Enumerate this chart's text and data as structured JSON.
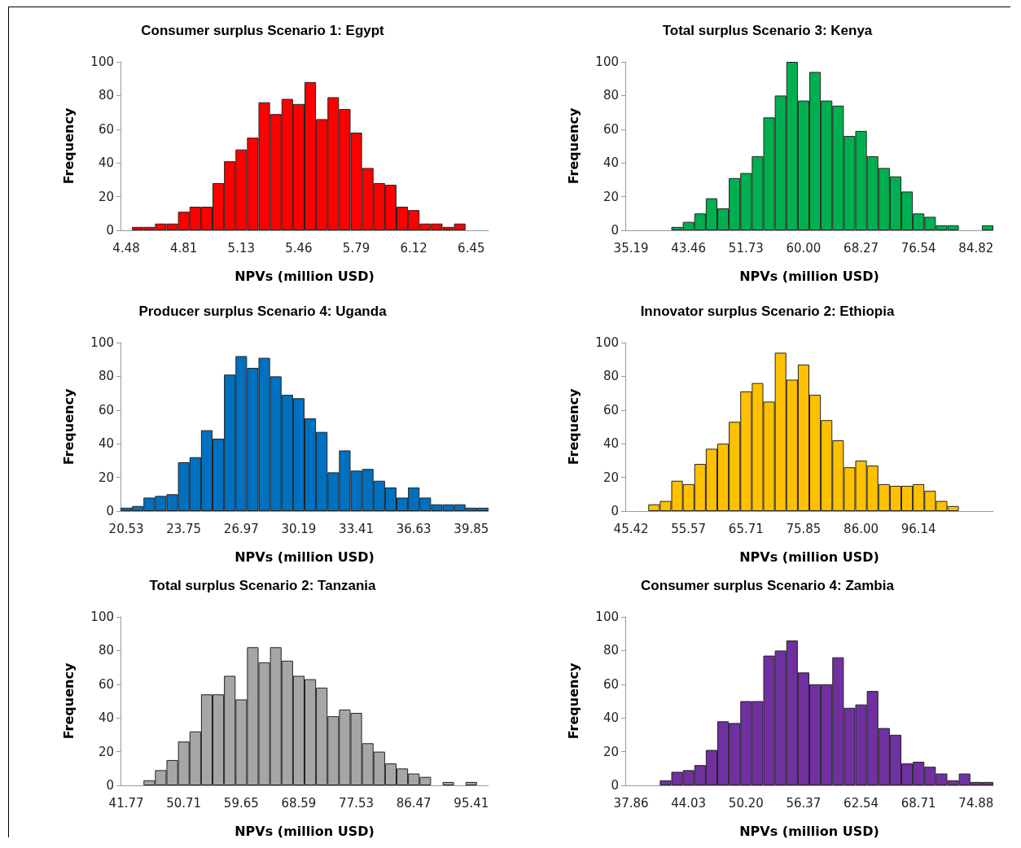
{
  "chart_data": [
    {
      "type": "bar",
      "title": "Consumer surplus Scenario 1: Egypt",
      "xlabel": "NPVs (million USD)",
      "ylabel": "Frequency",
      "color": "#ff0000",
      "ylim": [
        0,
        100
      ],
      "yticks": [
        0,
        20,
        40,
        60,
        80,
        100
      ],
      "categories": [
        "4.48",
        null,
        null,
        null,
        null,
        "4.81",
        null,
        null,
        null,
        null,
        "5.13",
        null,
        null,
        null,
        null,
        "5.46",
        null,
        null,
        null,
        null,
        "5.79",
        null,
        null,
        null,
        null,
        "6.12",
        null,
        null,
        null,
        null,
        "6.45",
        null
      ],
      "values": [
        0,
        2,
        2,
        4,
        4,
        11,
        14,
        14,
        28,
        41,
        48,
        55,
        76,
        69,
        78,
        75,
        88,
        66,
        79,
        72,
        58,
        37,
        28,
        27,
        14,
        12,
        4,
        4,
        2,
        4,
        0,
        0
      ]
    },
    {
      "type": "bar",
      "title": "Total surplus Scenario 3: Kenya",
      "xlabel": "NPVs (million USD)",
      "ylabel": "Frequency",
      "color": "#00b050",
      "ylim": [
        0,
        100
      ],
      "yticks": [
        0,
        20,
        40,
        60,
        80,
        100
      ],
      "categories": [
        "35.19",
        null,
        null,
        null,
        null,
        "43.46",
        null,
        null,
        null,
        null,
        "51.73",
        null,
        null,
        null,
        null,
        "60.00",
        null,
        null,
        null,
        null,
        "68.27",
        null,
        null,
        null,
        null,
        "76.54",
        null,
        null,
        null,
        null,
        "84.82",
        null
      ],
      "values": [
        0,
        0,
        0,
        0,
        2,
        5,
        10,
        19,
        13,
        31,
        34,
        44,
        67,
        80,
        100,
        77,
        94,
        77,
        74,
        56,
        59,
        44,
        37,
        32,
        23,
        10,
        8,
        3,
        3,
        0,
        0,
        3
      ]
    },
    {
      "type": "bar",
      "title": "Producer surplus Scenario 4: Uganda",
      "xlabel": "NPVs (million USD)",
      "ylabel": "Frequency",
      "color": "#0070c0",
      "ylim": [
        0,
        100
      ],
      "yticks": [
        0,
        20,
        40,
        60,
        80,
        100
      ],
      "categories": [
        "20.53",
        null,
        null,
        null,
        null,
        "23.75",
        null,
        null,
        null,
        null,
        "26.97",
        null,
        null,
        null,
        null,
        "30.19",
        null,
        null,
        null,
        null,
        "33.41",
        null,
        null,
        null,
        null,
        "36.63",
        null,
        null,
        null,
        null,
        "39.85",
        null
      ],
      "values": [
        2,
        3,
        8,
        9,
        10,
        29,
        32,
        48,
        43,
        81,
        92,
        85,
        91,
        80,
        69,
        67,
        55,
        47,
        23,
        36,
        24,
        25,
        18,
        14,
        8,
        14,
        8,
        4,
        4,
        4,
        2,
        2
      ]
    },
    {
      "type": "bar",
      "title": "Innovator surplus Scenario 2: Ethiopia",
      "xlabel": "NPVs (million USD)",
      "ylabel": "Frequency",
      "color": "#ffc000",
      "ylim": [
        0,
        100
      ],
      "yticks": [
        0,
        20,
        40,
        60,
        80,
        100
      ],
      "categories": [
        "45.42",
        null,
        null,
        null,
        null,
        "55.57",
        null,
        null,
        null,
        null,
        "65.71",
        null,
        null,
        null,
        null,
        "75.85",
        null,
        null,
        null,
        null,
        "86.00",
        null,
        null,
        null,
        null,
        "96.14",
        null,
        null,
        null,
        null,
        null,
        null
      ],
      "values": [
        0,
        0,
        4,
        6,
        18,
        16,
        28,
        37,
        40,
        53,
        71,
        76,
        65,
        94,
        78,
        87,
        69,
        54,
        42,
        26,
        30,
        27,
        16,
        15,
        15,
        16,
        12,
        6,
        3,
        0,
        0,
        0
      ]
    },
    {
      "type": "bar",
      "title": "Total surplus Scenario 2: Tanzania",
      "xlabel": "NPVs (million USD)",
      "ylabel": "Frequency",
      "color": "#a6a6a6",
      "ylim": [
        0,
        100
      ],
      "yticks": [
        0,
        20,
        40,
        60,
        80,
        100
      ],
      "categories": [
        "41.77",
        null,
        null,
        null,
        null,
        "50.71",
        null,
        null,
        null,
        null,
        "59.65",
        null,
        null,
        null,
        null,
        "68.59",
        null,
        null,
        null,
        null,
        "77.53",
        null,
        null,
        null,
        null,
        "86.47",
        null,
        null,
        null,
        null,
        "95.41",
        null
      ],
      "values": [
        0,
        0,
        3,
        9,
        15,
        26,
        32,
        54,
        54,
        65,
        51,
        82,
        73,
        82,
        74,
        65,
        63,
        58,
        41,
        45,
        43,
        25,
        20,
        13,
        10,
        7,
        5,
        0,
        2,
        0,
        2,
        0
      ]
    },
    {
      "type": "bar",
      "title": "Consumer surplus Scenario 4: Zambia",
      "xlabel": "NPVs (million USD)",
      "ylabel": "Frequency",
      "color": "#7030a0",
      "ylim": [
        0,
        100
      ],
      "yticks": [
        0,
        20,
        40,
        60,
        80,
        100
      ],
      "categories": [
        "37.86",
        null,
        null,
        null,
        null,
        "44.03",
        null,
        null,
        null,
        null,
        "50.20",
        null,
        null,
        null,
        null,
        "56.37",
        null,
        null,
        null,
        null,
        "62.54",
        null,
        null,
        null,
        null,
        "68.71",
        null,
        null,
        null,
        null,
        "74.88",
        null
      ],
      "values": [
        0,
        0,
        0,
        3,
        8,
        9,
        12,
        21,
        38,
        37,
        50,
        50,
        77,
        80,
        86,
        67,
        60,
        60,
        76,
        46,
        48,
        56,
        34,
        30,
        13,
        14,
        11,
        7,
        3,
        7,
        2,
        2
      ]
    }
  ]
}
